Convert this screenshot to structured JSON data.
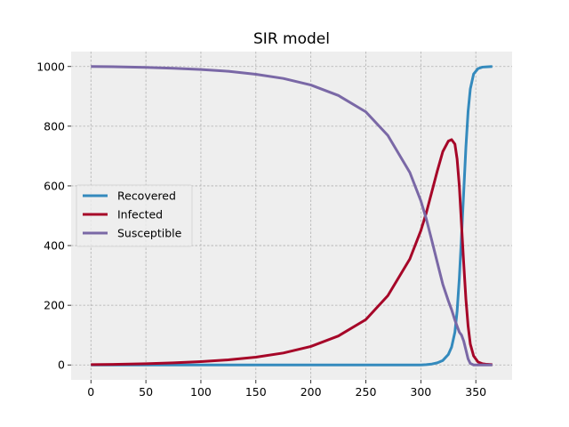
{
  "chart_data": {
    "type": "line",
    "title": "SIR model",
    "xlabel": "",
    "ylabel": "",
    "xlim": [
      -18,
      383
    ],
    "ylim": [
      -50,
      1050
    ],
    "x_ticks": [
      0,
      50,
      100,
      150,
      200,
      250,
      300,
      350
    ],
    "y_ticks": [
      0,
      200,
      400,
      600,
      800,
      1000
    ],
    "grid": true,
    "legend_position": "center-left",
    "background": "#eeeeee",
    "x": [
      0,
      25,
      50,
      75,
      100,
      125,
      150,
      175,
      200,
      225,
      250,
      270,
      290,
      300,
      305,
      310,
      315,
      320,
      325,
      328,
      331,
      333,
      335,
      337,
      339,
      341,
      343,
      345,
      348,
      352,
      356,
      360,
      365
    ],
    "series": [
      {
        "name": "Recovered",
        "color": "#348abd",
        "values": [
          0,
          0,
          0,
          0,
          0,
          0,
          0,
          0,
          0,
          0,
          0,
          0,
          0,
          0,
          1,
          3,
          7,
          15,
          35,
          60,
          110,
          180,
          290,
          430,
          580,
          730,
          850,
          925,
          975,
          993,
          998,
          999,
          1000
        ]
      },
      {
        "name": "Infected",
        "color": "#a60628",
        "values": [
          1,
          2,
          4,
          7,
          11,
          17,
          26,
          40,
          62,
          97,
          152,
          232,
          355,
          450,
          510,
          580,
          650,
          715,
          750,
          755,
          740,
          690,
          600,
          470,
          340,
          220,
          130,
          70,
          30,
          10,
          4,
          2,
          1
        ]
      },
      {
        "name": "Susceptible",
        "color": "#7a68a6",
        "values": [
          1000,
          999,
          997,
          994,
          990,
          984,
          974,
          960,
          938,
          903,
          848,
          769,
          645,
          550,
          489,
          417,
          343,
          270,
          215,
          185,
          150,
          130,
          110,
          100,
          80,
          50,
          20,
          5,
          0,
          0,
          0,
          0,
          0
        ]
      }
    ]
  }
}
